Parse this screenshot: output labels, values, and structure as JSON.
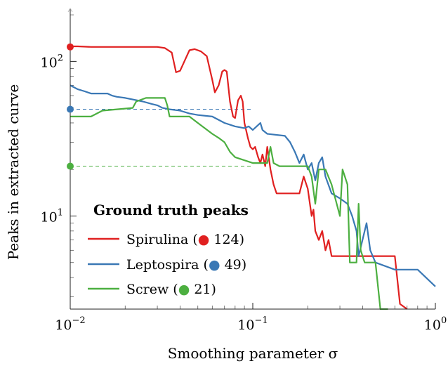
{
  "chart_data": {
    "type": "line",
    "xscale": "log",
    "yscale": "log",
    "xlabel": "Smoothing parameter σ",
    "ylabel": "Peaks in extracted curve",
    "xlim": [
      0.01,
      1
    ],
    "ylim": [
      2.5,
      220
    ],
    "x_ticks": [
      {
        "value": 0.01,
        "base": "10",
        "exp": "−2"
      },
      {
        "value": 0.1,
        "base": "10",
        "exp": "−1"
      },
      {
        "value": 1,
        "base": "10",
        "exp": "0"
      }
    ],
    "y_ticks": [
      {
        "value": 10,
        "base": "10",
        "exp": "1"
      },
      {
        "value": 100,
        "base": "10",
        "exp": "2"
      }
    ],
    "legend": {
      "title": "Ground truth peaks",
      "position": "bottom-left"
    },
    "series": [
      {
        "name": "Spirulina",
        "ground_truth": 124,
        "label_prefix": "Spirulina (",
        "label_value": "124",
        "color": "#e02020",
        "points": [
          [
            0.01,
            125
          ],
          [
            0.011,
            125
          ],
          [
            0.013,
            124
          ],
          [
            0.02,
            124
          ],
          [
            0.03,
            124
          ],
          [
            0.033,
            122
          ],
          [
            0.036,
            114
          ],
          [
            0.038,
            85
          ],
          [
            0.04,
            87
          ],
          [
            0.043,
            105
          ],
          [
            0.045,
            118
          ],
          [
            0.048,
            120
          ],
          [
            0.052,
            116
          ],
          [
            0.056,
            108
          ],
          [
            0.06,
            76
          ],
          [
            0.062,
            63
          ],
          [
            0.065,
            70
          ],
          [
            0.068,
            86
          ],
          [
            0.07,
            88
          ],
          [
            0.072,
            86
          ],
          [
            0.075,
            55
          ],
          [
            0.078,
            44
          ],
          [
            0.08,
            43
          ],
          [
            0.083,
            56
          ],
          [
            0.086,
            60
          ],
          [
            0.088,
            55
          ],
          [
            0.09,
            40
          ],
          [
            0.094,
            32
          ],
          [
            0.097,
            28
          ],
          [
            0.1,
            27
          ],
          [
            0.103,
            28
          ],
          [
            0.107,
            24
          ],
          [
            0.11,
            22
          ],
          [
            0.113,
            25
          ],
          [
            0.117,
            21
          ],
          [
            0.12,
            28
          ],
          [
            0.125,
            20
          ],
          [
            0.13,
            16
          ],
          [
            0.135,
            14
          ],
          [
            0.18,
            14
          ],
          [
            0.19,
            18
          ],
          [
            0.2,
            15
          ],
          [
            0.21,
            10
          ],
          [
            0.215,
            11
          ],
          [
            0.22,
            8
          ],
          [
            0.23,
            7
          ],
          [
            0.24,
            8
          ],
          [
            0.25,
            6
          ],
          [
            0.26,
            7
          ],
          [
            0.27,
            5.5
          ],
          [
            0.3,
            5.5
          ],
          [
            0.6,
            5.5
          ],
          [
            0.64,
            2.7
          ],
          [
            0.7,
            2.5
          ]
        ]
      },
      {
        "name": "Leptospira",
        "ground_truth": 49,
        "label_prefix": "Leptospira (",
        "label_value": "49",
        "color": "#3a78b5",
        "points": [
          [
            0.01,
            70
          ],
          [
            0.011,
            66
          ],
          [
            0.012,
            64
          ],
          [
            0.013,
            62
          ],
          [
            0.016,
            62
          ],
          [
            0.017,
            60
          ],
          [
            0.018,
            59
          ],
          [
            0.02,
            58
          ],
          [
            0.025,
            55
          ],
          [
            0.028,
            53
          ],
          [
            0.03,
            52
          ],
          [
            0.032,
            50
          ],
          [
            0.035,
            49
          ],
          [
            0.04,
            48
          ],
          [
            0.045,
            46
          ],
          [
            0.05,
            45
          ],
          [
            0.06,
            44
          ],
          [
            0.07,
            40
          ],
          [
            0.08,
            38
          ],
          [
            0.09,
            37
          ],
          [
            0.095,
            38
          ],
          [
            0.1,
            36
          ],
          [
            0.105,
            38
          ],
          [
            0.11,
            40
          ],
          [
            0.113,
            36
          ],
          [
            0.12,
            34
          ],
          [
            0.15,
            33
          ],
          [
            0.16,
            30
          ],
          [
            0.17,
            26
          ],
          [
            0.18,
            22
          ],
          [
            0.19,
            25
          ],
          [
            0.2,
            20
          ],
          [
            0.21,
            22
          ],
          [
            0.22,
            17
          ],
          [
            0.23,
            22
          ],
          [
            0.24,
            24
          ],
          [
            0.25,
            18
          ],
          [
            0.27,
            14
          ],
          [
            0.3,
            13
          ],
          [
            0.33,
            12
          ],
          [
            0.35,
            10
          ],
          [
            0.37,
            8
          ],
          [
            0.38,
            5.5
          ],
          [
            0.42,
            9
          ],
          [
            0.44,
            6
          ],
          [
            0.47,
            5
          ],
          [
            0.6,
            4.5
          ],
          [
            0.8,
            4.5
          ],
          [
            1.0,
            3.5
          ]
        ]
      },
      {
        "name": "Screw",
        "ground_truth": 21,
        "label_prefix": "Screw (",
        "label_value": "21",
        "color": "#4caf40",
        "points": [
          [
            0.01,
            44
          ],
          [
            0.013,
            44
          ],
          [
            0.015,
            48
          ],
          [
            0.022,
            50
          ],
          [
            0.023,
            55
          ],
          [
            0.026,
            58
          ],
          [
            0.033,
            58
          ],
          [
            0.034,
            52
          ],
          [
            0.035,
            44
          ],
          [
            0.045,
            44
          ],
          [
            0.05,
            40
          ],
          [
            0.06,
            34
          ],
          [
            0.065,
            32
          ],
          [
            0.07,
            30
          ],
          [
            0.075,
            26
          ],
          [
            0.08,
            24
          ],
          [
            0.1,
            22
          ],
          [
            0.12,
            22
          ],
          [
            0.125,
            28
          ],
          [
            0.13,
            22
          ],
          [
            0.14,
            21
          ],
          [
            0.2,
            21
          ],
          [
            0.21,
            18
          ],
          [
            0.22,
            12
          ],
          [
            0.23,
            20
          ],
          [
            0.25,
            20
          ],
          [
            0.27,
            16
          ],
          [
            0.3,
            10
          ],
          [
            0.31,
            20
          ],
          [
            0.33,
            16
          ],
          [
            0.34,
            5
          ],
          [
            0.37,
            5
          ],
          [
            0.38,
            12
          ],
          [
            0.39,
            6
          ],
          [
            0.41,
            5
          ],
          [
            0.47,
            5
          ],
          [
            0.5,
            2.5
          ],
          [
            0.55,
            2.5
          ]
        ]
      }
    ]
  }
}
